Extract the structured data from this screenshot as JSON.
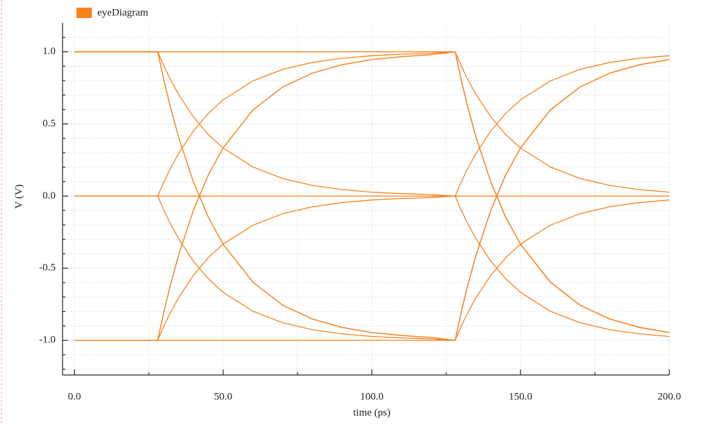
{
  "chart_data": {
    "type": "line",
    "x_label": "time (ps)",
    "y_label": "V (V)",
    "x": [
      0,
      28,
      30,
      32,
      35,
      40,
      45,
      50,
      60,
      70,
      80,
      90,
      100,
      110,
      120,
      128,
      130,
      132,
      135,
      140,
      145,
      150,
      160,
      170,
      180,
      190,
      200
    ],
    "series": [
      {
        "name": "eyeDiagram",
        "color": "#f7821b",
        "values": [
          [
            1,
            1,
            1,
            1,
            1,
            1,
            1,
            1,
            1,
            1,
            1,
            1,
            1,
            1,
            1,
            1,
            0.81,
            0.638,
            0.41,
            0.098,
            -0.146,
            -0.334,
            -0.596,
            -0.756,
            -0.852,
            -0.91,
            -0.946
          ],
          [
            1,
            1,
            0.905,
            0.819,
            0.705,
            0.549,
            0.427,
            0.333,
            0.202,
            0.122,
            0.074,
            0.045,
            0.027,
            0.017,
            0.01,
            0,
            0.095,
            0.181,
            0.295,
            0.451,
            0.573,
            0.667,
            0.798,
            0.878,
            0.926,
            0.955,
            0.973
          ],
          [
            1,
            1,
            0.81,
            0.638,
            0.41,
            0.098,
            -0.146,
            -0.334,
            -0.596,
            -0.756,
            -0.852,
            -0.91,
            -0.946,
            -0.966,
            -0.98,
            -1,
            -0.905,
            -0.819,
            -0.705,
            -0.549,
            -0.427,
            -0.333,
            -0.202,
            -0.122,
            -0.074,
            -0.045,
            -0.027
          ],
          [
            0,
            0,
            0.095,
            0.181,
            0.295,
            0.451,
            0.573,
            0.667,
            0.798,
            0.878,
            0.926,
            0.955,
            0.973,
            0.983,
            0.99,
            1,
            0.81,
            0.638,
            0.41,
            0.098,
            -0.146,
            -0.334,
            -0.596,
            -0.756,
            -0.852,
            -0.91,
            -0.946
          ],
          [
            0,
            0,
            -0.095,
            -0.181,
            -0.295,
            -0.451,
            -0.573,
            -0.667,
            -0.798,
            -0.878,
            -0.926,
            -0.955,
            -0.973,
            -0.983,
            -0.99,
            -1,
            -0.81,
            -0.638,
            -0.41,
            -0.098,
            0.146,
            0.334,
            0.596,
            0.756,
            0.852,
            0.91,
            0.946
          ],
          [
            -1,
            -1,
            -0.81,
            -0.638,
            -0.41,
            -0.098,
            0.146,
            0.334,
            0.596,
            0.756,
            0.852,
            0.91,
            0.946,
            0.966,
            0.98,
            1,
            0.905,
            0.819,
            0.705,
            0.549,
            0.427,
            0.333,
            0.202,
            0.122,
            0.074,
            0.045,
            0.027
          ],
          [
            -1,
            -1,
            -0.905,
            -0.819,
            -0.705,
            -0.549,
            -0.427,
            -0.333,
            -0.202,
            -0.122,
            -0.074,
            -0.045,
            -0.027,
            -0.017,
            -0.01,
            0,
            -0.095,
            -0.181,
            -0.295,
            -0.451,
            -0.573,
            -0.667,
            -0.798,
            -0.878,
            -0.926,
            -0.955,
            -0.973
          ],
          [
            0,
            0,
            0,
            0,
            0,
            0,
            0,
            0,
            0,
            0,
            0,
            0,
            0,
            0,
            0,
            0,
            0,
            0,
            0,
            0,
            0,
            0,
            0,
            0,
            0,
            0,
            0
          ],
          [
            1,
            1,
            0.81,
            0.638,
            0.41,
            0.098,
            -0.146,
            -0.334,
            -0.596,
            -0.756,
            -0.852,
            -0.91,
            -0.946,
            -0.966,
            -0.98,
            -1,
            -0.81,
            -0.638,
            -0.41,
            -0.098,
            0.146,
            0.334,
            0.596,
            0.756,
            0.852,
            0.91,
            0.946
          ],
          [
            -1,
            -1,
            -0.81,
            -0.638,
            -0.41,
            -0.098,
            0.146,
            0.334,
            0.596,
            0.756,
            0.852,
            0.91,
            0.946,
            0.966,
            0.98,
            1,
            0.81,
            0.638,
            0.41,
            0.098,
            -0.146,
            -0.334,
            -0.596,
            -0.756,
            -0.852,
            -0.91,
            -0.946
          ],
          [
            -1,
            -1,
            -1,
            -1,
            -1,
            -1,
            -1,
            -1,
            -1,
            -1,
            -1,
            -1,
            -1,
            -1,
            -1,
            -1,
            -0.81,
            -0.638,
            -0.41,
            -0.098,
            0.146,
            0.334,
            0.596,
            0.756,
            0.852,
            0.91,
            0.946
          ]
        ]
      }
    ],
    "xlim": [
      -4,
      200
    ],
    "xticks": [
      {
        "value": 0,
        "label": "0.0"
      },
      {
        "value": 50,
        "label": "50.0"
      },
      {
        "value": 100,
        "label": "100.0"
      },
      {
        "value": 150,
        "label": "150.0"
      },
      {
        "value": 200,
        "label": "200.0"
      }
    ],
    "x_minor_ticks": [
      25,
      75,
      125,
      175
    ],
    "ylim": [
      -1.24,
      1.2
    ],
    "yticks": [
      {
        "value": -1,
        "label": "-1.0"
      },
      -0.5,
      {
        "value": 0,
        "label": "0.0"
      },
      0.5,
      {
        "value": 1,
        "label": "1.0"
      }
    ],
    "y_minor_ticks": [
      -1.2,
      -1.1,
      -0.9,
      -0.8,
      -0.7,
      -0.6,
      -0.4,
      -0.3,
      -0.2,
      -0.1,
      0.1,
      0.2,
      0.3,
      0.4,
      0.6,
      0.7,
      0.8,
      0.9,
      1.1
    ],
    "grid": true
  }
}
